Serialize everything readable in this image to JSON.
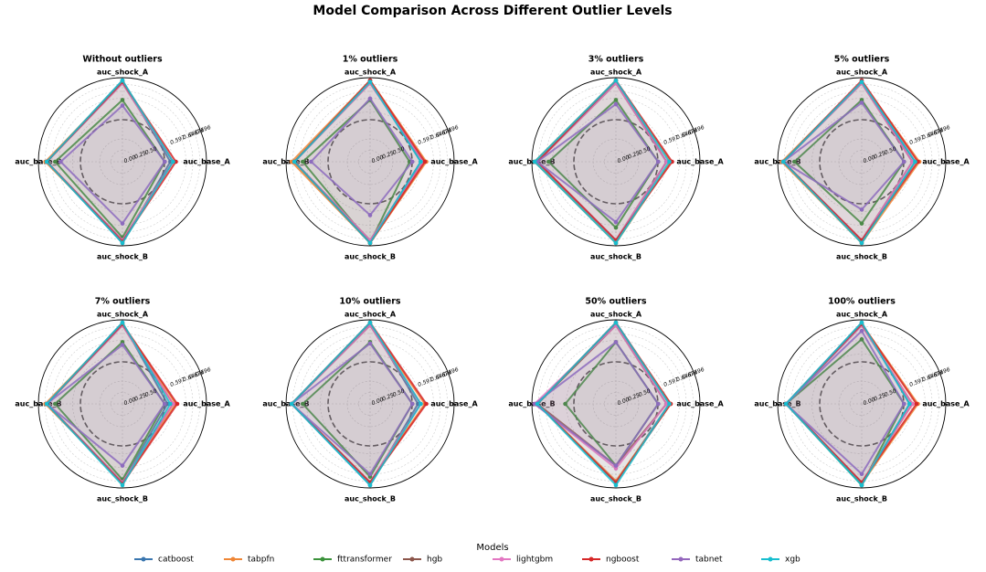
{
  "title": "Model Comparison Across Different Outlier Levels",
  "legend_title": "Models",
  "chart_data": [
    {
      "type": "radar",
      "title": "Without outliers",
      "categories": [
        "auc_shock_A",
        "auc_base_A",
        "auc_shock_B",
        "auc_base_B"
      ],
      "ylim": [
        0,
        0.72
      ],
      "yticks": [
        {
          "value": 0,
          "label": "0.00"
        },
        0.25,
        {
          "value": 0.5,
          "label": "0.50"
        },
        0.597,
        0.646,
        0.671,
        0.696
      ],
      "series": [
        {
          "name": "catboost",
          "color": "#3a76af",
          "values": [
            0.71,
            0.59,
            0.71,
            0.69
          ]
        },
        {
          "name": "tabpfn",
          "color": "#ef8636",
          "values": [
            0.705,
            0.6,
            0.7,
            0.695
          ]
        },
        {
          "name": "fttransformer",
          "color": "#3b923b",
          "values": [
            0.64,
            0.57,
            0.69,
            0.66
          ]
        },
        {
          "name": "hgb",
          "color": "#8c564b",
          "values": [
            0.7,
            0.6,
            0.7,
            0.69
          ]
        },
        {
          "name": "lightgbm",
          "color": "#e377c2",
          "values": [
            0.7,
            0.6,
            0.7,
            0.69
          ]
        },
        {
          "name": "ngboost",
          "color": "#d62728",
          "values": [
            0.705,
            0.61,
            0.705,
            0.69
          ]
        },
        {
          "name": "tabnet",
          "color": "#9467bd",
          "values": [
            0.62,
            0.57,
            0.64,
            0.64
          ]
        },
        {
          "name": "xgb",
          "color": "#17becf",
          "values": [
            0.71,
            0.6,
            0.71,
            0.69
          ]
        }
      ]
    },
    {
      "type": "radar",
      "title": "1% outliers",
      "categories": [
        "auc_shock_A",
        "auc_base_A",
        "auc_shock_B",
        "auc_base_B"
      ],
      "ylim": [
        0,
        0.72
      ],
      "yticks": [
        {
          "value": 0,
          "label": "0.00"
        },
        0.25,
        {
          "value": 0.5,
          "label": "0.50"
        },
        0.597,
        0.646,
        0.671,
        0.696
      ],
      "series": [
        {
          "name": "catboost",
          "color": "#3a76af",
          "values": [
            0.71,
            0.6,
            0.71,
            0.69
          ]
        },
        {
          "name": "tabpfn",
          "color": "#ef8636",
          "values": [
            0.71,
            0.62,
            0.71,
            0.7
          ]
        },
        {
          "name": "fttransformer",
          "color": "#3b923b",
          "values": [
            0.64,
            0.56,
            0.71,
            0.66
          ]
        },
        {
          "name": "hgb",
          "color": "#8c564b",
          "values": [
            0.7,
            0.61,
            0.7,
            0.69
          ]
        },
        {
          "name": "lightgbm",
          "color": "#e377c2",
          "values": [
            0.7,
            0.61,
            0.7,
            0.69
          ]
        },
        {
          "name": "ngboost",
          "color": "#d62728",
          "values": [
            0.71,
            0.615,
            0.71,
            0.69
          ]
        },
        {
          "name": "tabnet",
          "color": "#9467bd",
          "values": [
            0.645,
            0.57,
            0.61,
            0.63
          ]
        },
        {
          "name": "xgb",
          "color": "#17becf",
          "values": [
            0.705,
            0.6,
            0.71,
            0.69
          ]
        }
      ]
    },
    {
      "type": "radar",
      "title": "3% outliers",
      "categories": [
        "auc_shock_A",
        "auc_base_A",
        "auc_shock_B",
        "auc_base_B"
      ],
      "ylim": [
        0,
        0.72
      ],
      "yticks": [
        {
          "value": 0,
          "label": "0.00"
        },
        0.25,
        {
          "value": 0.5,
          "label": "0.50"
        },
        0.597,
        0.646,
        0.671,
        0.696
      ],
      "series": [
        {
          "name": "catboost",
          "color": "#3a76af",
          "values": [
            0.71,
            0.6,
            0.71,
            0.71
          ]
        },
        {
          "name": "tabpfn",
          "color": "#ef8636",
          "values": [
            0.71,
            0.615,
            0.71,
            0.71
          ]
        },
        {
          "name": "fttransformer",
          "color": "#3b923b",
          "values": [
            0.64,
            0.57,
            0.655,
            0.66
          ]
        },
        {
          "name": "hgb",
          "color": "#8c564b",
          "values": [
            0.7,
            0.6,
            0.7,
            0.7
          ]
        },
        {
          "name": "lightgbm",
          "color": "#e377c2",
          "values": [
            0.7,
            0.6,
            0.7,
            0.7
          ]
        },
        {
          "name": "ngboost",
          "color": "#d62728",
          "values": [
            0.71,
            0.62,
            0.7,
            0.7
          ]
        },
        {
          "name": "tabnet",
          "color": "#9467bd",
          "values": [
            0.625,
            0.57,
            0.635,
            0.7
          ]
        },
        {
          "name": "xgb",
          "color": "#17becf",
          "values": [
            0.71,
            0.61,
            0.71,
            0.71
          ]
        }
      ]
    },
    {
      "type": "radar",
      "title": "5% outliers",
      "categories": [
        "auc_shock_A",
        "auc_base_A",
        "auc_shock_B",
        "auc_base_B"
      ],
      "ylim": [
        0,
        0.72
      ],
      "yticks": [
        {
          "value": 0,
          "label": "0.00"
        },
        0.25,
        {
          "value": 0.5,
          "label": "0.50"
        },
        0.597,
        0.646,
        0.671,
        0.696
      ],
      "series": [
        {
          "name": "catboost",
          "color": "#3a76af",
          "values": [
            0.7,
            0.61,
            0.71,
            0.7
          ]
        },
        {
          "name": "tabpfn",
          "color": "#ef8636",
          "values": [
            0.705,
            0.625,
            0.71,
            0.705
          ]
        },
        {
          "name": "fttransformer",
          "color": "#3b923b",
          "values": [
            0.64,
            0.57,
            0.64,
            0.66
          ]
        },
        {
          "name": "hgb",
          "color": "#8c564b",
          "values": [
            0.7,
            0.6,
            0.7,
            0.7
          ]
        },
        {
          "name": "lightgbm",
          "color": "#e377c2",
          "values": [
            0.7,
            0.6,
            0.7,
            0.7
          ]
        },
        {
          "name": "ngboost",
          "color": "#d62728",
          "values": [
            0.71,
            0.62,
            0.7,
            0.7
          ]
        },
        {
          "name": "tabnet",
          "color": "#9467bd",
          "values": [
            0.63,
            0.57,
            0.59,
            0.7
          ]
        },
        {
          "name": "xgb",
          "color": "#17becf",
          "values": [
            0.705,
            0.61,
            0.71,
            0.7
          ]
        }
      ]
    },
    {
      "type": "radar",
      "title": "7% outliers",
      "categories": [
        "auc_shock_A",
        "auc_base_A",
        "auc_shock_B",
        "auc_base_B"
      ],
      "ylim": [
        0,
        0.72
      ],
      "yticks": [
        {
          "value": 0,
          "label": "0.00"
        },
        0.25,
        {
          "value": 0.5,
          "label": "0.50"
        },
        0.597,
        0.646,
        0.671,
        0.696
      ],
      "series": [
        {
          "name": "catboost",
          "color": "#3a76af",
          "values": [
            0.71,
            0.58,
            0.7,
            0.69
          ]
        },
        {
          "name": "tabpfn",
          "color": "#ef8636",
          "values": [
            0.705,
            0.61,
            0.7,
            0.695
          ]
        },
        {
          "name": "fttransformer",
          "color": "#3b923b",
          "values": [
            0.64,
            0.57,
            0.69,
            0.66
          ]
        },
        {
          "name": "hgb",
          "color": "#8c564b",
          "values": [
            0.7,
            0.6,
            0.7,
            0.69
          ]
        },
        {
          "name": "lightgbm",
          "color": "#e377c2",
          "values": [
            0.7,
            0.6,
            0.7,
            0.69
          ]
        },
        {
          "name": "ngboost",
          "color": "#d62728",
          "values": [
            0.705,
            0.615,
            0.705,
            0.69
          ]
        },
        {
          "name": "tabnet",
          "color": "#9467bd",
          "values": [
            0.63,
            0.57,
            0.64,
            0.69
          ]
        },
        {
          "name": "xgb",
          "color": "#17becf",
          "values": [
            0.71,
            0.59,
            0.71,
            0.69
          ]
        }
      ]
    },
    {
      "type": "radar",
      "title": "10% outliers",
      "categories": [
        "auc_shock_A",
        "auc_base_A",
        "auc_shock_B",
        "auc_base_B"
      ],
      "ylim": [
        0,
        0.72
      ],
      "yticks": [
        {
          "value": 0,
          "label": "0.00"
        },
        0.25,
        {
          "value": 0.5,
          "label": "0.50"
        },
        0.597,
        0.646,
        0.671,
        0.696
      ],
      "series": [
        {
          "name": "catboost",
          "color": "#3a76af",
          "values": [
            0.71,
            0.59,
            0.71,
            0.7
          ]
        },
        {
          "name": "tabpfn",
          "color": "#ef8636",
          "values": [
            0.705,
            0.615,
            0.7,
            0.7
          ]
        },
        {
          "name": "fttransformer",
          "color": "#3b923b",
          "values": [
            0.64,
            0.57,
            0.68,
            0.66
          ]
        },
        {
          "name": "hgb",
          "color": "#8c564b",
          "values": [
            0.7,
            0.6,
            0.7,
            0.7
          ]
        },
        {
          "name": "lightgbm",
          "color": "#e377c2",
          "values": [
            0.7,
            0.6,
            0.7,
            0.7
          ]
        },
        {
          "name": "ngboost",
          "color": "#d62728",
          "values": [
            0.71,
            0.62,
            0.7,
            0.7
          ]
        },
        {
          "name": "tabnet",
          "color": "#9467bd",
          "values": [
            0.635,
            0.57,
            0.67,
            0.7
          ]
        },
        {
          "name": "xgb",
          "color": "#17becf",
          "values": [
            0.71,
            0.6,
            0.71,
            0.7
          ]
        }
      ]
    },
    {
      "type": "radar",
      "title": "50% outliers",
      "categories": [
        "auc_shock_A",
        "auc_base_A",
        "auc_shock_B",
        "auc_base_B"
      ],
      "ylim": [
        0,
        0.72
      ],
      "yticks": [
        {
          "value": 0,
          "label": "0.00"
        },
        0.25,
        {
          "value": 0.5,
          "label": "0.50"
        },
        0.597,
        0.646,
        0.671,
        0.696
      ],
      "series": [
        {
          "name": "catboost",
          "color": "#3a76af",
          "values": [
            0.71,
            0.61,
            0.7,
            0.7
          ]
        },
        {
          "name": "tabpfn",
          "color": "#ef8636",
          "values": [
            0.705,
            0.615,
            0.695,
            0.7
          ]
        },
        {
          "name": "fttransformer",
          "color": "#3b923b",
          "values": [
            0.64,
            0.57,
            0.64,
            0.6
          ]
        },
        {
          "name": "hgb",
          "color": "#8c564b",
          "values": [
            0.7,
            0.6,
            0.64,
            0.7
          ]
        },
        {
          "name": "lightgbm",
          "color": "#e377c2",
          "values": [
            0.7,
            0.6,
            0.65,
            0.71
          ]
        },
        {
          "name": "ngboost",
          "color": "#d62728",
          "values": [
            0.71,
            0.615,
            0.7,
            0.7
          ]
        },
        {
          "name": "tabnet",
          "color": "#9467bd",
          "values": [
            0.64,
            0.57,
            0.64,
            0.71
          ]
        },
        {
          "name": "xgb",
          "color": "#17becf",
          "values": [
            0.71,
            0.61,
            0.71,
            0.7
          ]
        }
      ]
    },
    {
      "type": "radar",
      "title": "100% outliers",
      "categories": [
        "auc_shock_A",
        "auc_base_A",
        "auc_shock_B",
        "auc_base_B"
      ],
      "ylim": [
        0,
        0.72
      ],
      "yticks": [
        {
          "value": 0,
          "label": "0.00"
        },
        0.25,
        {
          "value": 0.5,
          "label": "0.50"
        },
        0.597,
        0.646,
        0.671,
        0.696
      ],
      "series": [
        {
          "name": "catboost",
          "color": "#3a76af",
          "values": [
            0.71,
            0.59,
            0.71,
            0.69
          ]
        },
        {
          "name": "tabpfn",
          "color": "#ef8636",
          "values": [
            0.705,
            0.62,
            0.705,
            0.69
          ]
        },
        {
          "name": "fttransformer",
          "color": "#3b923b",
          "values": [
            0.65,
            0.57,
            0.71,
            0.69
          ]
        },
        {
          "name": "hgb",
          "color": "#8c564b",
          "values": [
            0.7,
            0.6,
            0.7,
            0.69
          ]
        },
        {
          "name": "lightgbm",
          "color": "#e377c2",
          "values": [
            0.7,
            0.6,
            0.7,
            0.69
          ]
        },
        {
          "name": "ngboost",
          "color": "#d62728",
          "values": [
            0.705,
            0.615,
            0.7,
            0.69
          ]
        },
        {
          "name": "tabnet",
          "color": "#9467bd",
          "values": [
            0.68,
            0.57,
            0.67,
            0.69
          ]
        },
        {
          "name": "xgb",
          "color": "#17becf",
          "values": [
            0.71,
            0.59,
            0.71,
            0.69
          ]
        }
      ]
    }
  ]
}
